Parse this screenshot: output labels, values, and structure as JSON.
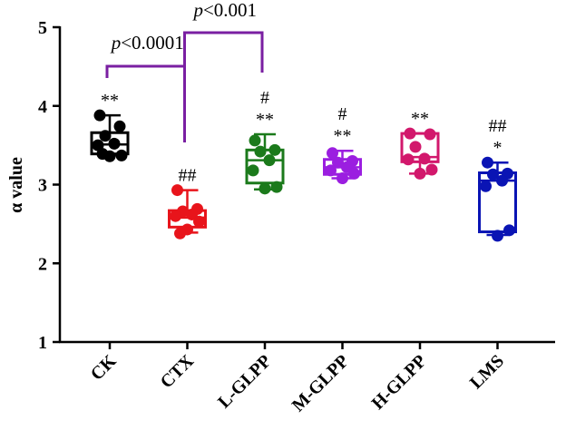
{
  "chart_data": {
    "type": "box",
    "title": "",
    "xlabel": "",
    "ylabel": "α value",
    "ylim": [
      1,
      5
    ],
    "yticks": [
      "1",
      "2",
      "3",
      "4",
      "5"
    ],
    "grid": false,
    "categories": [
      "CK",
      "CTX",
      "L-GLPP",
      "M-GLPP",
      "H-GLPP",
      "LMS"
    ],
    "colors": [
      "#000000",
      "#e8141b",
      "#1b7a1b",
      "#9b1ee0",
      "#d2186c",
      "#0a14b4"
    ],
    "groups": [
      {
        "name": "CK",
        "min": 3.38,
        "q1": 3.39,
        "median": 3.51,
        "q3": 3.66,
        "max": 3.88,
        "points": [
          3.88,
          3.74,
          3.62,
          3.52,
          3.5,
          3.37,
          3.36,
          3.39
        ],
        "sig": [
          "**"
        ]
      },
      {
        "name": "CTX",
        "min": 2.39,
        "q1": 2.46,
        "median": 2.58,
        "q3": 2.67,
        "max": 2.93,
        "points": [
          2.93,
          2.69,
          2.66,
          2.62,
          2.6,
          2.53,
          2.43,
          2.38
        ],
        "sig": [
          "##"
        ]
      },
      {
        "name": "L-GLPP",
        "min": 2.94,
        "q1": 3.02,
        "median": 3.31,
        "q3": 3.44,
        "max": 3.64,
        "points": [
          3.56,
          3.44,
          3.42,
          3.31,
          3.18,
          2.97,
          2.95
        ],
        "sig": [
          "#",
          "**"
        ]
      },
      {
        "name": "M-GLPP",
        "min": 3.08,
        "q1": 3.13,
        "median": 3.22,
        "q3": 3.32,
        "max": 3.43,
        "points": [
          3.4,
          3.3,
          3.28,
          3.22,
          3.18,
          3.14,
          3.08
        ],
        "sig": [
          "#",
          "**"
        ]
      },
      {
        "name": "H-GLPP",
        "min": 3.14,
        "q1": 3.29,
        "median": 3.35,
        "q3": 3.65,
        "max": 3.65,
        "points": [
          3.65,
          3.64,
          3.48,
          3.33,
          3.32,
          3.19,
          3.14
        ],
        "sig": [
          "**"
        ]
      },
      {
        "name": "LMS",
        "min": 2.36,
        "q1": 2.4,
        "median": 3.05,
        "q3": 3.15,
        "max": 3.28,
        "points": [
          3.28,
          3.14,
          3.13,
          3.05,
          2.98,
          2.42,
          2.35
        ],
        "sig": [
          "##",
          "*"
        ]
      }
    ],
    "comparisons": [
      {
        "from": "CK",
        "to": "CTX",
        "italic": "p",
        "rest": "<0.0001",
        "color": "#7a1fa2"
      },
      {
        "from": "CTX",
        "to": "L-GLPP",
        "italic": "p",
        "rest": "<0.001",
        "color": "#7a1fa2"
      }
    ]
  }
}
